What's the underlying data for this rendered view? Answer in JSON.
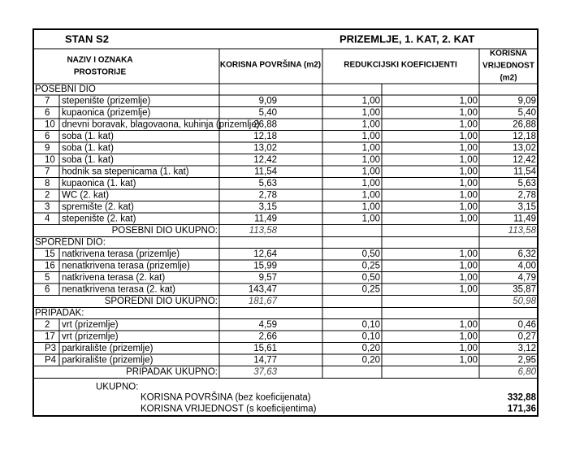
{
  "header": {
    "title": "STAN S2",
    "floors": "PRIZEMLJE, 1. KAT, 2. KAT"
  },
  "columns": {
    "name": [
      "NAZIV I OZNAKA",
      "PROSTORIJE"
    ],
    "area": "KORISNA POVRŠINA (m2)",
    "coef": "REDUKCIJSKI KOEFICIJENTI",
    "value": [
      "KORISNA",
      "VRIJEDNOST",
      "(m2)"
    ]
  },
  "sections": [
    {
      "label": "POSEBNI DIO",
      "rows": [
        [
          "7",
          "stepenište (prizemlje)",
          "9,09",
          "1,00",
          "1,00",
          "9,09"
        ],
        [
          "6",
          "kupaonica (prizemlje)",
          "5,40",
          "1,00",
          "1,00",
          "5,40"
        ],
        [
          "10",
          "dnevni boravak, blagovaona, kuhinja (prizemlje)",
          "26,88",
          "1,00",
          "1,00",
          "26,88"
        ],
        [
          "6",
          "soba (1. kat)",
          "12,18",
          "1,00",
          "1,00",
          "12,18"
        ],
        [
          "9",
          "soba (1. kat)",
          "13,02",
          "1,00",
          "1,00",
          "13,02"
        ],
        [
          "10",
          "soba (1. kat)",
          "12,42",
          "1,00",
          "1,00",
          "12,42"
        ],
        [
          "7",
          "hodnik sa stepenicama (1. kat)",
          "11,54",
          "1,00",
          "1,00",
          "11,54"
        ],
        [
          "8",
          "kupaonica (1. kat)",
          "5,63",
          "1,00",
          "1,00",
          "5,63"
        ],
        [
          "2",
          "WC (2. kat)",
          "2,78",
          "1,00",
          "1,00",
          "2,78"
        ],
        [
          "3",
          "spremište (2. kat)",
          "3,15",
          "1,00",
          "1,00",
          "3,15"
        ],
        [
          "4",
          "stepenište (2. kat)",
          "11,49",
          "1,00",
          "1,00",
          "11,49"
        ]
      ],
      "total_label": "POSEBNI DIO UKUPNO:",
      "total_area": "113,58",
      "total_value": "113,58"
    },
    {
      "label": "SPOREDNI DIO:",
      "rows": [
        [
          "15",
          "natkrivena terasa (prizemlje)",
          "12,64",
          "0,50",
          "1,00",
          "6,32"
        ],
        [
          "16",
          "nenatkrivena terasa (prizemlje)",
          "15,99",
          "0,25",
          "1,00",
          "4,00"
        ],
        [
          "5",
          "natkrivena terasa (2. kat)",
          "9,57",
          "0,50",
          "1,00",
          "4,79"
        ],
        [
          "6",
          "nenatkrivena terasa (2. kat)",
          "143,47",
          "0,25",
          "1,00",
          "35,87"
        ]
      ],
      "total_label": "SPOREDNI DIO UKUPNO:",
      "total_area": "181,67",
      "total_value": "50,98"
    },
    {
      "label": "PRIPADAK:",
      "rows": [
        [
          "2",
          "vrt (prizemlje)",
          "4,59",
          "0,10",
          "1,00",
          "0,46"
        ],
        [
          "17",
          "vrt (prizemlje)",
          "2,66",
          "0,10",
          "1,00",
          "0,27"
        ],
        [
          "P3",
          "parkiralište (prizemlje)",
          "15,61",
          "0,20",
          "1,00",
          "3,12"
        ],
        [
          "P4",
          "parkiralište (prizemlje)",
          "14,77",
          "0,20",
          "1,00",
          "2,95"
        ]
      ],
      "total_label": "PRIPADAK UKUPNO:",
      "total_area": "37,63",
      "total_value": "6,80"
    }
  ],
  "summary": {
    "label": "UKUPNO:",
    "lines": [
      {
        "label": "KORISNA POVRŠINA (bez koeficijenata)",
        "value": "332,88"
      },
      {
        "label": "KORISNA VRIJEDNOST (s koeficijentima)",
        "value": "171,36"
      }
    ]
  }
}
